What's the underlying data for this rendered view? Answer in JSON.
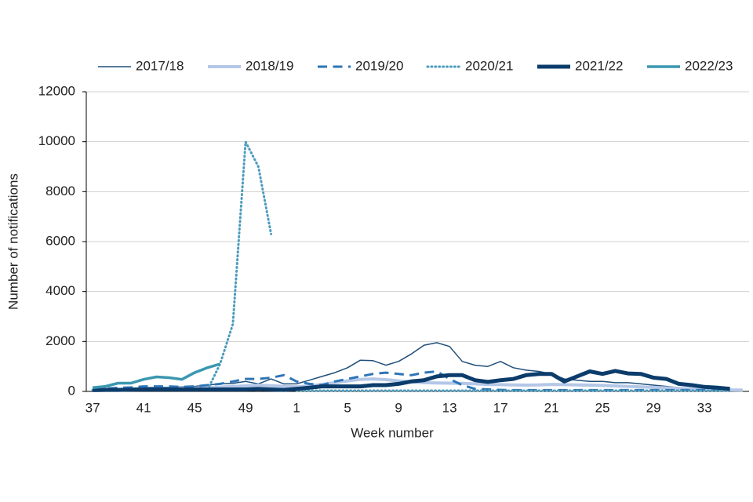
{
  "chart_data": {
    "type": "line",
    "x_label": "Week number",
    "y_label": "Number of notifications",
    "categories": [
      "37",
      null,
      null,
      null,
      "41",
      null,
      null,
      null,
      "45",
      null,
      null,
      null,
      "49",
      null,
      null,
      null,
      "1",
      null,
      null,
      null,
      "5",
      null,
      null,
      null,
      "9",
      null,
      null,
      null,
      "13",
      null,
      null,
      null,
      "17",
      null,
      null,
      null,
      "21",
      null,
      null,
      null,
      "25",
      null,
      null,
      null,
      "29",
      null,
      null,
      null,
      "33",
      null,
      null,
      null
    ],
    "ylim": [
      0,
      12000
    ],
    "yticks": [
      0,
      2000,
      4000,
      6000,
      8000,
      10000,
      12000
    ],
    "grid": true,
    "legend": "top",
    "series": [
      {
        "name": "2017/18",
        "color": "#1f4e79",
        "linewidth": 1.5,
        "linestyle": "solid",
        "values": [
          100,
          110,
          120,
          130,
          150,
          160,
          170,
          180,
          200,
          250,
          300,
          320,
          400,
          300,
          500,
          300,
          300,
          450,
          600,
          750,
          950,
          1250,
          1230,
          1050,
          1200,
          1500,
          1850,
          1950,
          1800,
          1200,
          1050,
          1000,
          1200,
          950,
          850,
          800,
          700,
          500,
          450,
          400,
          400,
          350,
          350,
          300,
          250,
          200,
          150,
          100,
          100,
          80,
          60,
          null
        ]
      },
      {
        "name": "2018/19",
        "color": "#b4c7e7",
        "linewidth": 4,
        "linestyle": "solid",
        "values": [
          50,
          60,
          70,
          80,
          90,
          100,
          110,
          120,
          130,
          150,
          170,
          200,
          220,
          250,
          230,
          200,
          180,
          220,
          280,
          350,
          420,
          480,
          500,
          470,
          420,
          380,
          350,
          340,
          330,
          320,
          300,
          280,
          270,
          260,
          250,
          260,
          280,
          270,
          260,
          250,
          240,
          220,
          200,
          180,
          160,
          140,
          120,
          100,
          80,
          70,
          60,
          50
        ]
      },
      {
        "name": "2019/20",
        "color": "#2e75b6",
        "linewidth": 3,
        "linestyle": "dashed",
        "values": [
          100,
          120,
          140,
          160,
          200,
          200,
          200,
          180,
          200,
          250,
          300,
          400,
          500,
          500,
          550,
          650,
          400,
          300,
          250,
          400,
          500,
          600,
          700,
          750,
          700,
          650,
          750,
          800,
          500,
          250,
          100,
          80,
          60,
          50,
          50,
          50,
          50,
          50,
          50,
          50,
          50,
          50,
          50,
          50,
          50,
          50,
          50,
          50,
          50,
          50,
          50,
          null
        ]
      },
      {
        "name": "2020/21",
        "color": "#4a9bbd",
        "linewidth": 3,
        "linestyle": "dotted",
        "values": [
          50,
          50,
          50,
          50,
          50,
          50,
          50,
          50,
          50,
          50,
          1100,
          2700,
          10000,
          9000,
          6300,
          null,
          30,
          30,
          30,
          30,
          30,
          30,
          30,
          30,
          30,
          30,
          30,
          30,
          30,
          30,
          30,
          30,
          30,
          30,
          30,
          30,
          30,
          30,
          30,
          30,
          30,
          30,
          30,
          30,
          30,
          30,
          30,
          30,
          30,
          30,
          30,
          null
        ]
      },
      {
        "name": "2021/22",
        "color": "#0b3c6b",
        "linewidth": 5,
        "linestyle": "solid",
        "values": [
          50,
          60,
          60,
          70,
          80,
          80,
          80,
          80,
          80,
          80,
          80,
          80,
          80,
          100,
          80,
          60,
          100,
          150,
          200,
          200,
          200,
          200,
          250,
          250,
          300,
          400,
          450,
          600,
          650,
          650,
          450,
          380,
          450,
          500,
          650,
          700,
          700,
          400,
          600,
          800,
          700,
          820,
          720,
          700,
          550,
          500,
          300,
          250,
          180,
          150,
          100,
          null
        ]
      },
      {
        "name": "2022/23",
        "color": "#3a97b0",
        "linewidth": 3.5,
        "linestyle": "solid",
        "values": [
          150,
          200,
          330,
          330,
          480,
          580,
          550,
          480,
          750,
          950,
          1100,
          null,
          null,
          null,
          null,
          null,
          null,
          null,
          null,
          null,
          null,
          null,
          null,
          null,
          null,
          null,
          null,
          null,
          null,
          null,
          null,
          null,
          null,
          null,
          null,
          null,
          null,
          null,
          null,
          null,
          null,
          null,
          null,
          null,
          null,
          null,
          null,
          null,
          null,
          null,
          null,
          null
        ]
      }
    ]
  }
}
